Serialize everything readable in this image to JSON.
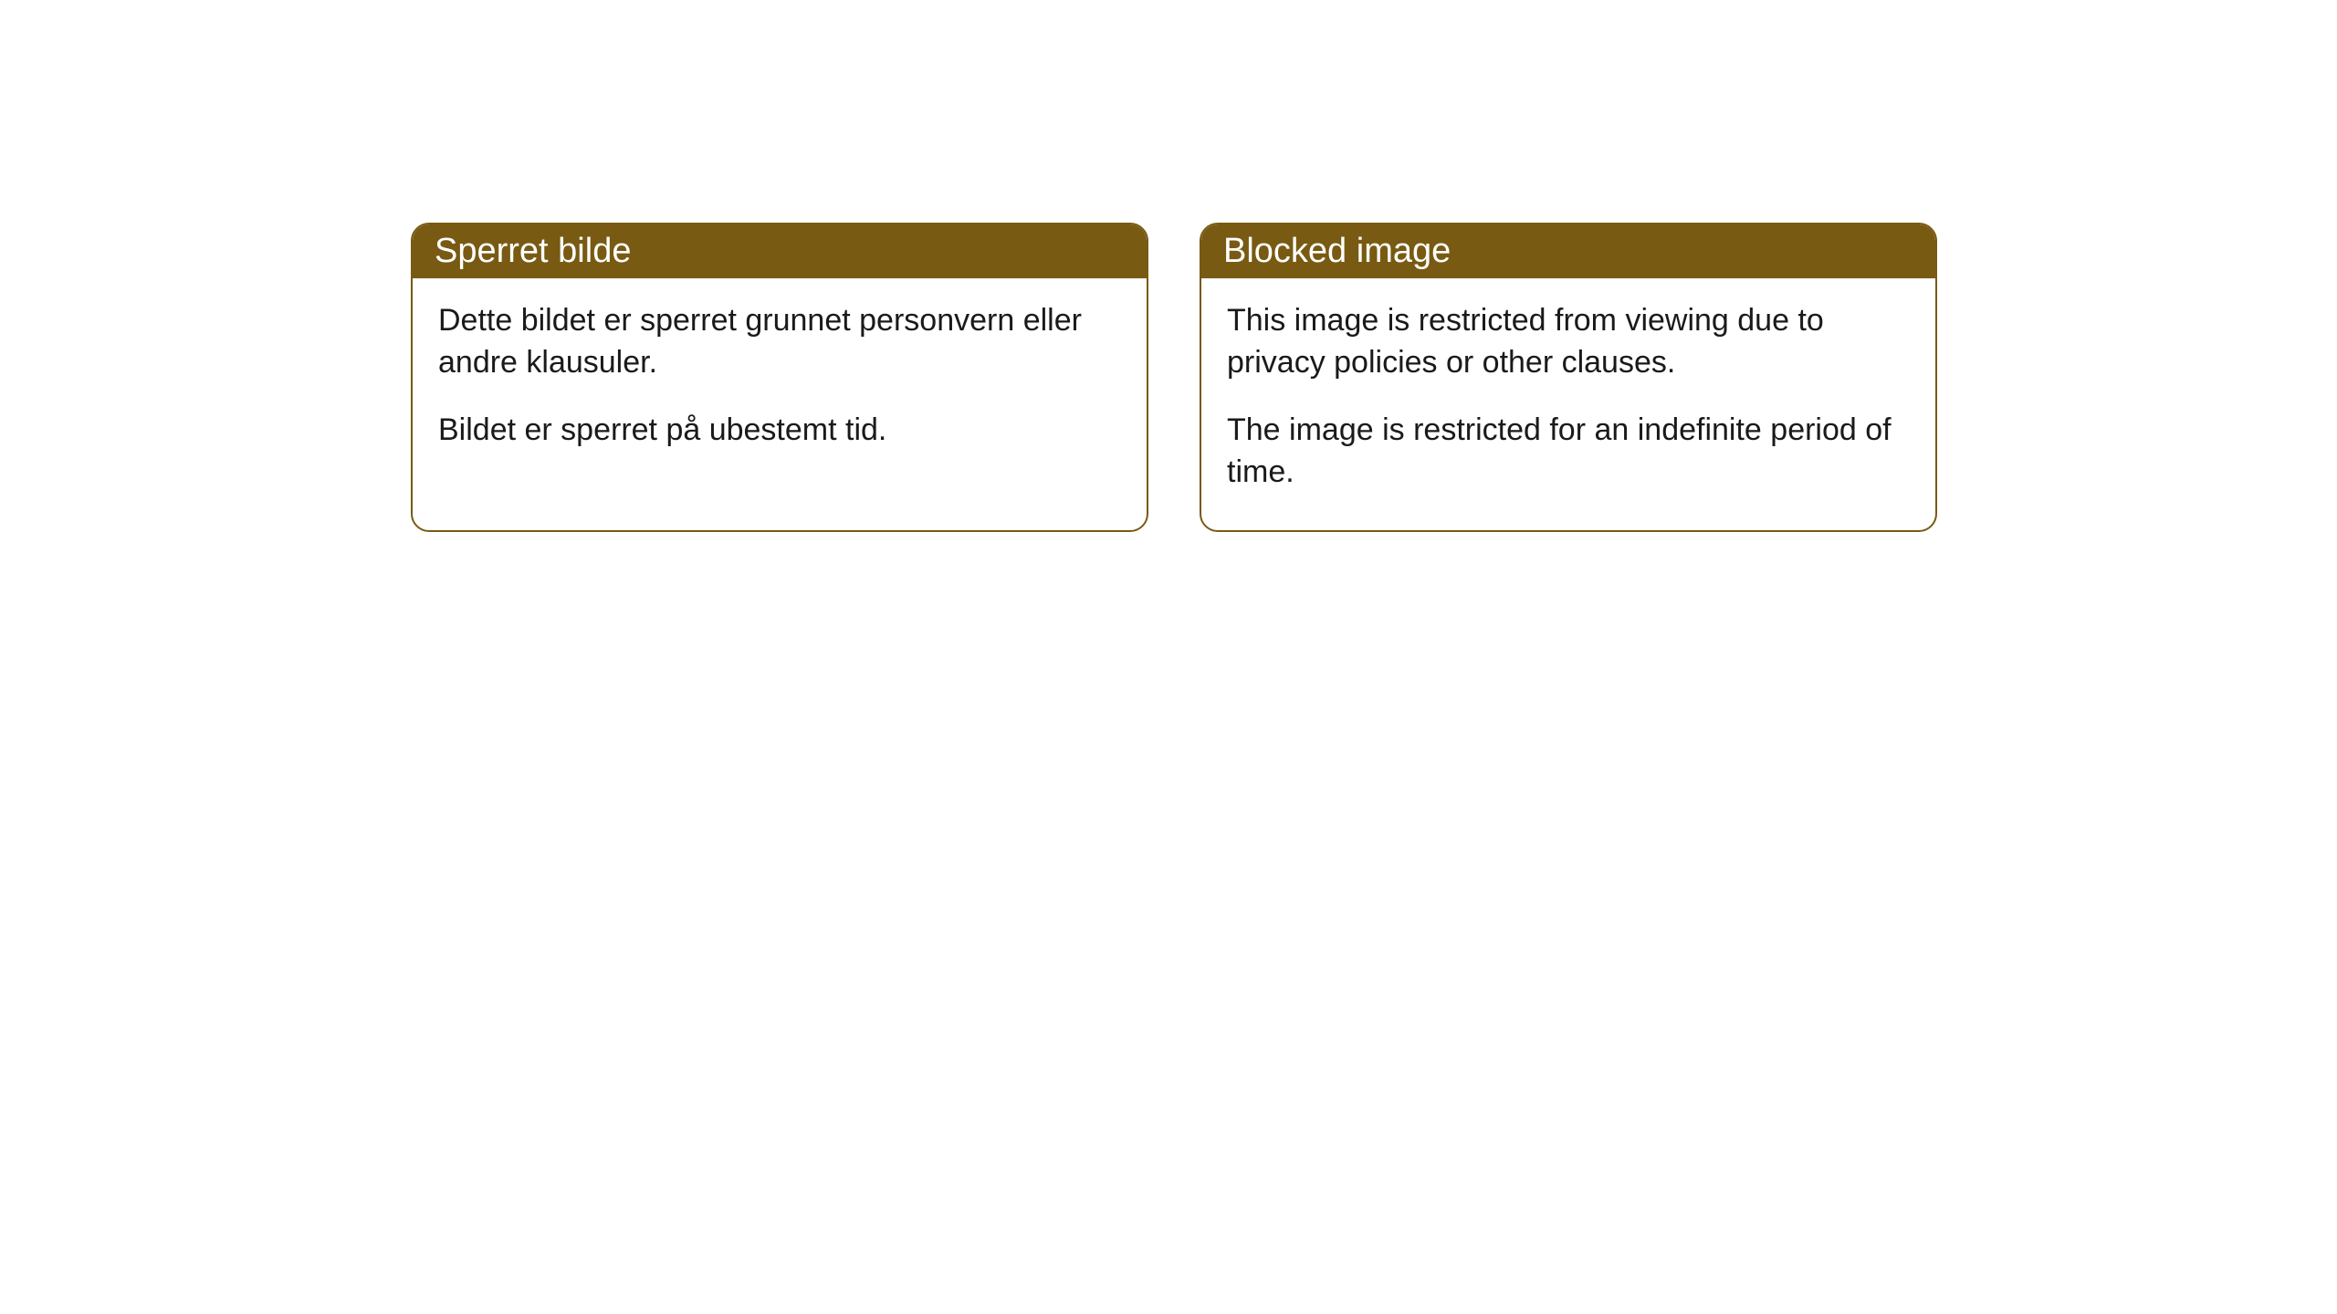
{
  "cards": [
    {
      "title": "Sperret bilde",
      "paragraph1": "Dette bildet er sperret grunnet personvern eller andre klausuler.",
      "paragraph2": "Bildet er sperret på ubestemt tid."
    },
    {
      "title": "Blocked image",
      "paragraph1": "This image is restricted from viewing due to privacy policies or other clauses.",
      "paragraph2": "The image is restricted for an indefinite period of time."
    }
  ],
  "styling": {
    "header_background": "#785a12",
    "header_text_color": "#ffffff",
    "border_color": "#785a12",
    "body_background": "#ffffff",
    "body_text_color": "#1a1a1a",
    "border_radius": 20,
    "title_fontsize": 38,
    "body_fontsize": 34
  }
}
